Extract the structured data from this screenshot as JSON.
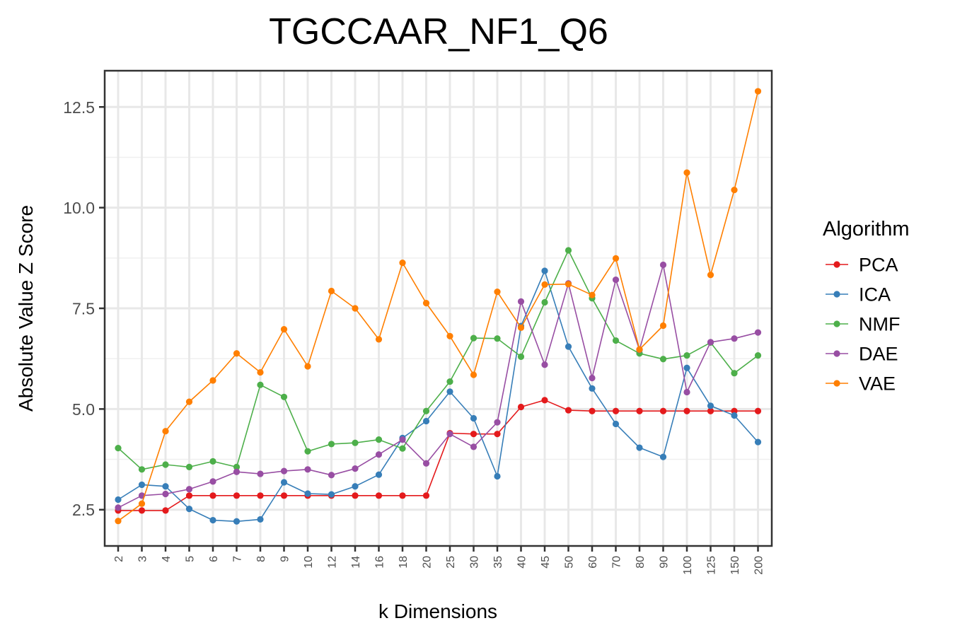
{
  "chart_data": {
    "type": "line",
    "title": "TGCCAAR_NF1_Q6",
    "xlabel": "k Dimensions",
    "ylabel": "Absolute Value Z Score",
    "categories": [
      "2",
      "3",
      "4",
      "5",
      "6",
      "7",
      "8",
      "9",
      "10",
      "12",
      "14",
      "16",
      "18",
      "20",
      "25",
      "30",
      "35",
      "40",
      "45",
      "50",
      "60",
      "70",
      "80",
      "90",
      "100",
      "125",
      "150",
      "200"
    ],
    "ylim": [
      1.6,
      13.4
    ],
    "yticks": [
      2.5,
      5.0,
      7.5,
      10.0,
      12.5
    ],
    "ytick_labels": [
      "2.5",
      "5.0",
      "7.5",
      "10.0",
      "12.5"
    ],
    "grid": true,
    "legend": {
      "title": "Algorithm",
      "position": "right"
    },
    "series": [
      {
        "name": "PCA",
        "color": "#E41A1C",
        "values": [
          2.48,
          2.48,
          2.48,
          2.85,
          2.85,
          2.85,
          2.85,
          2.85,
          2.85,
          2.85,
          2.85,
          2.85,
          2.85,
          2.85,
          4.4,
          4.38,
          4.38,
          5.05,
          5.22,
          4.97,
          4.95,
          4.95,
          4.95,
          4.95,
          4.95,
          4.95,
          4.95,
          4.95
        ]
      },
      {
        "name": "ICA",
        "color": "#377EB8",
        "values": [
          2.75,
          3.12,
          3.08,
          2.52,
          2.24,
          2.21,
          2.26,
          3.18,
          2.9,
          2.88,
          3.08,
          3.37,
          4.28,
          4.7,
          5.43,
          4.77,
          3.33,
          7.06,
          8.43,
          6.55,
          5.51,
          4.63,
          4.04,
          3.81,
          6.02,
          5.08,
          4.84,
          4.18
        ]
      },
      {
        "name": "NMF",
        "color": "#4DAF4A",
        "values": [
          4.03,
          3.5,
          3.62,
          3.56,
          3.7,
          3.56,
          5.6,
          5.3,
          3.95,
          4.13,
          4.16,
          4.24,
          4.02,
          4.95,
          5.68,
          6.76,
          6.75,
          6.3,
          7.65,
          8.94,
          7.75,
          6.7,
          6.38,
          6.24,
          6.33,
          6.65,
          5.89,
          6.33
        ]
      },
      {
        "name": "DAE",
        "color": "#984EA3",
        "values": [
          2.55,
          2.85,
          2.89,
          3.01,
          3.2,
          3.44,
          3.39,
          3.46,
          3.5,
          3.36,
          3.52,
          3.87,
          4.24,
          3.65,
          4.38,
          4.06,
          4.67,
          7.67,
          6.1,
          8.12,
          5.77,
          8.21,
          6.47,
          8.58,
          5.42,
          6.66,
          6.75,
          6.9
        ]
      },
      {
        "name": "VAE",
        "color": "#FF7F00",
        "values": [
          2.22,
          2.65,
          4.45,
          5.18,
          5.71,
          6.38,
          5.91,
          6.98,
          6.06,
          7.93,
          7.5,
          6.73,
          8.63,
          7.63,
          6.81,
          5.85,
          7.91,
          7.02,
          8.09,
          8.1,
          7.83,
          8.74,
          6.48,
          7.07,
          10.87,
          8.33,
          10.44,
          12.89
        ]
      }
    ]
  }
}
